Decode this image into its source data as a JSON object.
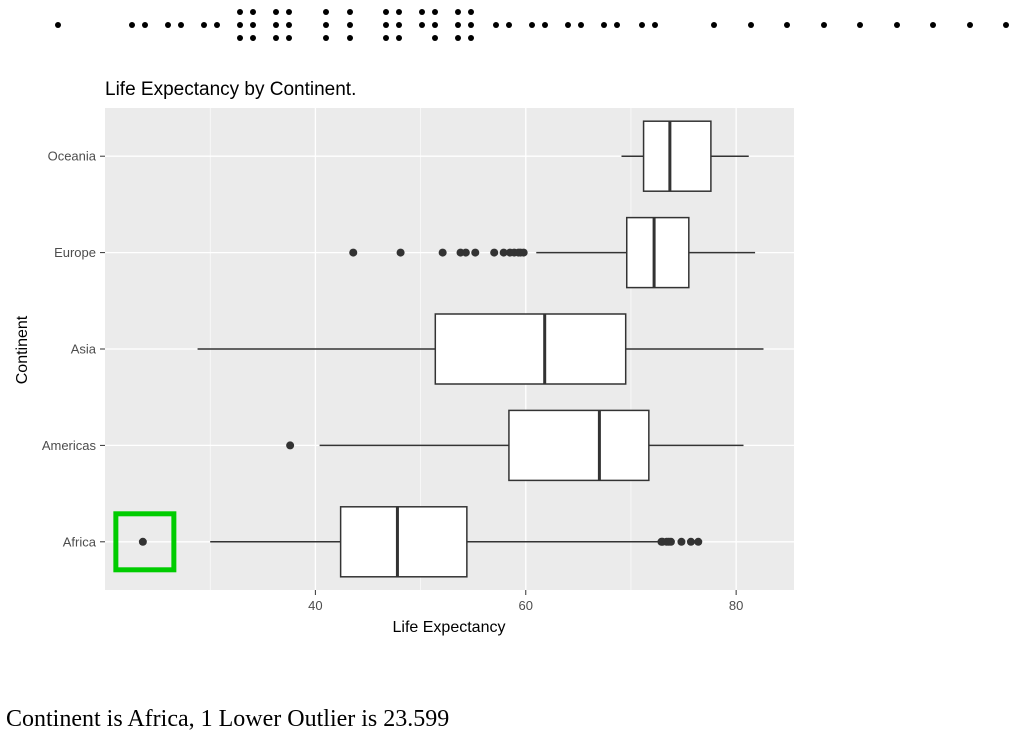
{
  "chart_data": {
    "type": "boxplot",
    "orientation": "horizontal",
    "title": "Life Expectancy by Continent.",
    "xlabel": "Life Expectancy",
    "ylabel": "Continent",
    "xlim": [
      20,
      85.5
    ],
    "x_ticks": [
      40,
      60,
      80
    ],
    "grid": true,
    "categories": [
      "Africa",
      "Americas",
      "Asia",
      "Europe",
      "Oceania"
    ],
    "series": [
      {
        "category": "Africa",
        "whisker_low": 30.0,
        "q1": 42.4,
        "median": 47.8,
        "q3": 54.4,
        "whisker_high": 72.8,
        "outliers": [
          23.599,
          72.9,
          73.0,
          73.4,
          73.6,
          73.8,
          74.8,
          75.7,
          76.4
        ]
      },
      {
        "category": "Americas",
        "whisker_low": 40.4,
        "q1": 58.4,
        "median": 67.0,
        "q3": 71.7,
        "whisker_high": 80.7,
        "outliers": [
          37.6
        ]
      },
      {
        "category": "Asia",
        "whisker_low": 28.8,
        "q1": 51.4,
        "median": 61.8,
        "q3": 69.5,
        "whisker_high": 82.6,
        "outliers": []
      },
      {
        "category": "Europe",
        "whisker_low": 61.0,
        "q1": 69.6,
        "median": 72.2,
        "q3": 75.5,
        "whisker_high": 81.8,
        "outliers": [
          43.6,
          48.1,
          52.1,
          53.8,
          54.3,
          55.2,
          57.0,
          57.9,
          58.5,
          58.9,
          59.3,
          59.5,
          59.8
        ]
      },
      {
        "category": "Oceania",
        "whisker_low": 69.1,
        "q1": 71.2,
        "median": 73.7,
        "q3": 77.6,
        "whisker_high": 81.2,
        "outliers": []
      }
    ],
    "highlight": {
      "category": "Africa",
      "value": 23.599,
      "color": "#00cc00"
    },
    "colors": {
      "panel": "#ebebeb",
      "grid": "#ffffff",
      "box_fill": "#ffffff",
      "box_stroke": "#333333",
      "point": "#333333"
    }
  },
  "caption": "Continent is Africa, 1 Lower Outlier is 23.599"
}
